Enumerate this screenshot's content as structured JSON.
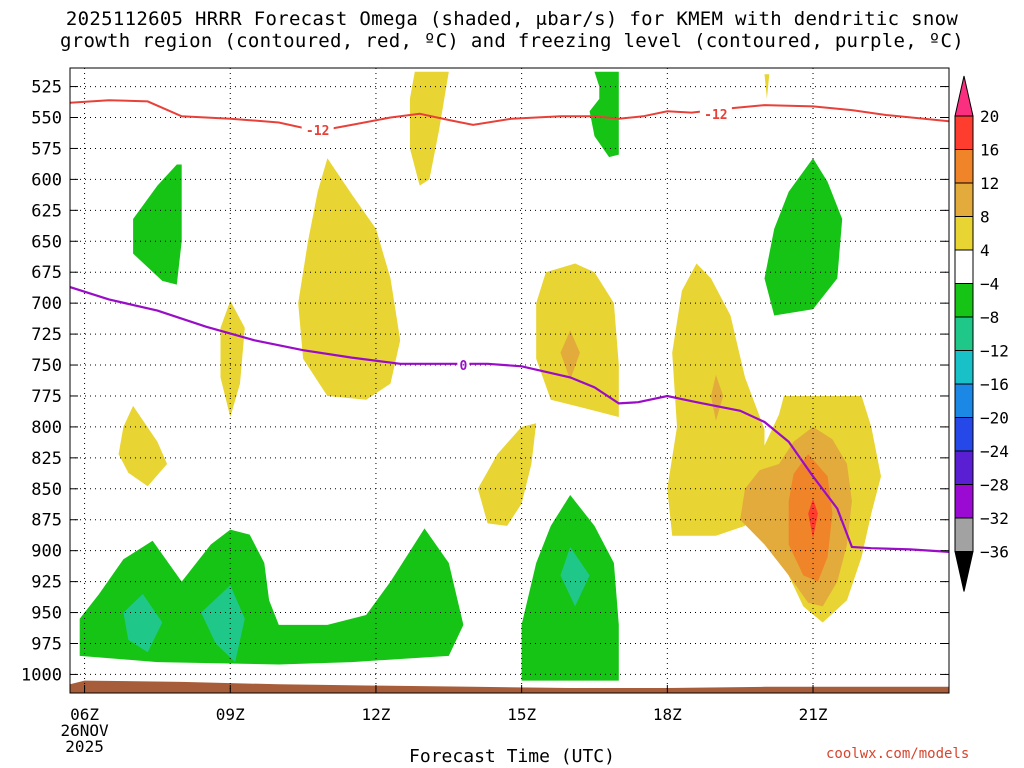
{
  "title": {
    "line1": "2025112605 HRRR Forecast Omega (shaded, μbar/s) for KMEM with dendritic snow",
    "line2": "growth region (contoured, red, ºC) and freezing level (contoured, purple, ºC)"
  },
  "credit": "coolwx.com/models",
  "chart_data": {
    "type": "time-height cross-section (filled contour)",
    "xlabel": "Forecast Time (UTC)",
    "x_ticks": [
      "06Z",
      "09Z",
      "12Z",
      "15Z",
      "18Z",
      "21Z"
    ],
    "x_date_label": [
      "26NOV",
      "2025"
    ],
    "xlim_hours_utc": [
      5.7,
      23.8
    ],
    "y_ticks_hpa": [
      525,
      550,
      575,
      600,
      625,
      650,
      675,
      700,
      725,
      750,
      775,
      800,
      825,
      850,
      875,
      900,
      925,
      950,
      975,
      1000
    ],
    "ylim_hpa": [
      510,
      1015
    ],
    "colorbar": {
      "labels": [
        "20",
        "16",
        "12",
        "8",
        "4",
        "−4",
        "−8",
        "−12",
        "−16",
        "−20",
        "−24",
        "−28",
        "−32",
        "−36"
      ],
      "colors": [
        "#fa2f80",
        "#ff3d2e",
        "#f08428",
        "#e3aa3c",
        "#e8d432",
        "#ffffff",
        "#16c416",
        "#1fc889",
        "#18c0c8",
        "#1c88e6",
        "#2648e8",
        "#5a1fd2",
        "#9b0ad2",
        "#a2a2a2",
        "#000000"
      ]
    },
    "dgz_contour": {
      "label": "-12",
      "color": "#e8413a",
      "points": [
        [
          5.7,
          538
        ],
        [
          6.5,
          536
        ],
        [
          7.3,
          537
        ],
        [
          8.0,
          549
        ],
        [
          9.0,
          551
        ],
        [
          10.0,
          554
        ],
        [
          10.8,
          561
        ],
        [
          11.5,
          556
        ],
        [
          12.3,
          550
        ],
        [
          12.9,
          547
        ],
        [
          13.5,
          552
        ],
        [
          14.0,
          556
        ],
        [
          14.8,
          551
        ],
        [
          15.8,
          549
        ],
        [
          16.5,
          549
        ],
        [
          17.0,
          551
        ],
        [
          17.5,
          549
        ],
        [
          18.0,
          545
        ],
        [
          18.5,
          546
        ],
        [
          19.2,
          543
        ],
        [
          20.0,
          540
        ],
        [
          21.0,
          541
        ],
        [
          21.8,
          544
        ],
        [
          22.5,
          548
        ],
        [
          23.8,
          553
        ]
      ],
      "label_positions": [
        [
          10.8,
          561
        ],
        [
          19.0,
          548
        ]
      ]
    },
    "freezing_level_contour": {
      "label": "0",
      "color": "#9a0dc8",
      "points": [
        [
          5.7,
          687
        ],
        [
          6.5,
          697
        ],
        [
          7.5,
          706
        ],
        [
          8.5,
          719
        ],
        [
          9.5,
          730
        ],
        [
          10.5,
          738
        ],
        [
          11.5,
          744
        ],
        [
          12.5,
          749
        ],
        [
          13.5,
          749
        ],
        [
          14.3,
          749
        ],
        [
          15.0,
          751
        ],
        [
          16.0,
          760
        ],
        [
          16.5,
          768
        ],
        [
          17.0,
          781
        ],
        [
          17.4,
          780
        ],
        [
          18.0,
          775
        ],
        [
          18.6,
          780
        ],
        [
          19.5,
          787
        ],
        [
          20.0,
          796
        ],
        [
          20.5,
          812
        ],
        [
          21.0,
          840
        ],
        [
          21.5,
          866
        ],
        [
          21.8,
          897
        ],
        [
          22.2,
          898
        ],
        [
          23.0,
          899
        ],
        [
          23.8,
          901
        ]
      ],
      "label_position": [
        13.8,
        750
      ]
    },
    "omega_regions": [
      {
        "value_class": "4 to 8",
        "color": "#e8d432",
        "polygon": [
          [
            12.8,
            513
          ],
          [
            13.5,
            513
          ],
          [
            13.3,
            560
          ],
          [
            13.1,
            600
          ],
          [
            12.9,
            605
          ],
          [
            12.7,
            575
          ],
          [
            12.7,
            535
          ]
        ]
      },
      {
        "value_class": "4 to 8",
        "color": "#e8d432",
        "polygon": [
          [
            11.0,
            583
          ],
          [
            11.5,
            612
          ],
          [
            12.0,
            640
          ],
          [
            12.3,
            680
          ],
          [
            12.5,
            730
          ],
          [
            12.3,
            765
          ],
          [
            11.8,
            778
          ],
          [
            11.0,
            775
          ],
          [
            10.5,
            745
          ],
          [
            10.4,
            700
          ],
          [
            10.6,
            650
          ],
          [
            10.8,
            610
          ]
        ]
      },
      {
        "value_class": "4 to 8",
        "color": "#e8d432",
        "polygon": [
          [
            9.0,
            698
          ],
          [
            9.3,
            720
          ],
          [
            9.2,
            765
          ],
          [
            9.0,
            792
          ],
          [
            8.8,
            760
          ],
          [
            8.8,
            720
          ]
        ]
      },
      {
        "value_class": "4 to 8",
        "color": "#e8d432",
        "polygon": [
          [
            7.0,
            783
          ],
          [
            7.5,
            812
          ],
          [
            7.7,
            830
          ],
          [
            7.3,
            848
          ],
          [
            6.9,
            837
          ],
          [
            6.7,
            822
          ],
          [
            6.8,
            800
          ]
        ]
      },
      {
        "value_class": "4 to 8",
        "color": "#e8d432",
        "polygon": [
          [
            15.3,
            797
          ],
          [
            15.2,
            830
          ],
          [
            15.0,
            862
          ],
          [
            14.7,
            880
          ],
          [
            14.3,
            878
          ],
          [
            14.1,
            850
          ],
          [
            14.5,
            822
          ],
          [
            15.0,
            800
          ]
        ]
      },
      {
        "value_class": "4 to 8",
        "color": "#e8d432",
        "polygon": [
          [
            16.1,
            668
          ],
          [
            16.5,
            675
          ],
          [
            16.9,
            700
          ],
          [
            17.0,
            750
          ],
          [
            17.0,
            792
          ],
          [
            16.3,
            785
          ],
          [
            15.6,
            778
          ],
          [
            15.3,
            745
          ],
          [
            15.3,
            700
          ],
          [
            15.5,
            675
          ]
        ]
      },
      {
        "value_class": "4 to 8",
        "color": "#e8d432",
        "polygon": [
          [
            18.6,
            668
          ],
          [
            18.9,
            680
          ],
          [
            19.3,
            710
          ],
          [
            19.6,
            760
          ],
          [
            20.0,
            802
          ],
          [
            20.0,
            840
          ],
          [
            19.6,
            880
          ],
          [
            19.0,
            888
          ],
          [
            18.1,
            888
          ],
          [
            18.0,
            850
          ],
          [
            18.2,
            800
          ],
          [
            18.1,
            740
          ],
          [
            18.3,
            690
          ]
        ]
      },
      {
        "value_class": "4 to 8",
        "color": "#e8d432",
        "polygon": [
          [
            20.4,
            775
          ],
          [
            21.2,
            775
          ],
          [
            22.0,
            775
          ],
          [
            22.2,
            800
          ],
          [
            22.4,
            840
          ],
          [
            22.2,
            870
          ],
          [
            22.0,
            905
          ],
          [
            21.7,
            940
          ],
          [
            21.2,
            958
          ],
          [
            20.8,
            945
          ],
          [
            20.4,
            912
          ],
          [
            20.0,
            880
          ],
          [
            19.8,
            850
          ],
          [
            20.0,
            815
          ],
          [
            20.3,
            790
          ]
        ]
      },
      {
        "value_class": "4 to 8",
        "color": "#e8d432",
        "polygon": [
          [
            20.0,
            515
          ],
          [
            20.1,
            515
          ],
          [
            20.05,
            535
          ]
        ]
      },
      {
        "value_class": "8 to 12",
        "color": "#e3aa3c",
        "polygon": [
          [
            21.0,
            800
          ],
          [
            21.4,
            810
          ],
          [
            21.7,
            830
          ],
          [
            21.8,
            860
          ],
          [
            21.7,
            895
          ],
          [
            21.5,
            925
          ],
          [
            21.2,
            945
          ],
          [
            20.9,
            942
          ],
          [
            20.5,
            920
          ],
          [
            20.0,
            895
          ],
          [
            19.5,
            875
          ],
          [
            19.6,
            850
          ],
          [
            19.9,
            835
          ],
          [
            20.3,
            830
          ],
          [
            20.6,
            812
          ]
        ]
      },
      {
        "value_class": "8 to 12",
        "color": "#e3aa3c",
        "polygon": [
          [
            16.0,
            722
          ],
          [
            16.2,
            740
          ],
          [
            16.0,
            762
          ],
          [
            15.8,
            740
          ]
        ]
      },
      {
        "value_class": "8 to 12",
        "color": "#e3aa3c",
        "polygon": [
          [
            19.0,
            758
          ],
          [
            19.15,
            775
          ],
          [
            19.0,
            795
          ],
          [
            18.9,
            775
          ]
        ]
      },
      {
        "value_class": "12 to 16",
        "color": "#f08428",
        "polygon": [
          [
            20.9,
            822
          ],
          [
            21.3,
            840
          ],
          [
            21.4,
            870
          ],
          [
            21.3,
            905
          ],
          [
            21.1,
            925
          ],
          [
            20.8,
            920
          ],
          [
            20.5,
            895
          ],
          [
            20.5,
            860
          ],
          [
            20.6,
            838
          ]
        ]
      },
      {
        "value_class": "16 to 20",
        "color": "#ff3d2e",
        "polygon": [
          [
            21.0,
            858
          ],
          [
            21.1,
            870
          ],
          [
            21.0,
            890
          ],
          [
            20.9,
            870
          ]
        ]
      },
      {
        "value_class": "-8 to -4",
        "color": "#16c416",
        "polygon": [
          [
            16.5,
            513
          ],
          [
            17.0,
            513
          ],
          [
            17.0,
            550
          ],
          [
            17.0,
            580
          ],
          [
            16.8,
            582
          ],
          [
            16.5,
            565
          ],
          [
            16.4,
            545
          ],
          [
            16.6,
            535
          ],
          [
            16.6,
            525
          ]
        ]
      },
      {
        "value_class": "-8 to -4",
        "color": "#16c416",
        "polygon": [
          [
            8.0,
            588
          ],
          [
            8.0,
            650
          ],
          [
            7.9,
            685
          ],
          [
            7.6,
            682
          ],
          [
            7.0,
            660
          ],
          [
            7.0,
            632
          ],
          [
            7.5,
            605
          ],
          [
            7.9,
            588
          ]
        ]
      },
      {
        "value_class": "-8 to -4",
        "color": "#16c416",
        "polygon": [
          [
            21.0,
            583
          ],
          [
            21.3,
            602
          ],
          [
            21.6,
            632
          ],
          [
            21.5,
            680
          ],
          [
            21.0,
            705
          ],
          [
            20.2,
            710
          ],
          [
            20.0,
            680
          ],
          [
            20.2,
            640
          ],
          [
            20.5,
            610
          ]
        ]
      },
      {
        "value_class": "-8 to -4",
        "color": "#16c416",
        "polygon": [
          [
            5.9,
            955
          ],
          [
            6.3,
            935
          ],
          [
            6.8,
            907
          ],
          [
            7.4,
            892
          ],
          [
            8.0,
            925
          ],
          [
            8.6,
            895
          ],
          [
            9.0,
            883
          ],
          [
            9.4,
            887
          ],
          [
            9.7,
            910
          ],
          [
            9.8,
            940
          ],
          [
            10.0,
            960
          ],
          [
            11.0,
            960
          ],
          [
            11.8,
            952
          ],
          [
            12.3,
            925
          ],
          [
            13.0,
            882
          ],
          [
            13.5,
            910
          ],
          [
            13.8,
            960
          ],
          [
            13.5,
            985
          ],
          [
            11.5,
            990
          ],
          [
            10.0,
            992
          ],
          [
            7.5,
            990
          ],
          [
            5.9,
            985
          ]
        ]
      },
      {
        "value_class": "-8 to -4",
        "color": "#16c416",
        "polygon": [
          [
            16.0,
            855
          ],
          [
            16.5,
            880
          ],
          [
            16.9,
            910
          ],
          [
            17.0,
            960
          ],
          [
            17.0,
            1005
          ],
          [
            15.0,
            1005
          ],
          [
            15.0,
            960
          ],
          [
            15.3,
            910
          ],
          [
            15.6,
            880
          ]
        ]
      },
      {
        "value_class": "-12 to -8",
        "color": "#1fc889",
        "polygon": [
          [
            7.2,
            935
          ],
          [
            7.6,
            958
          ],
          [
            7.3,
            982
          ],
          [
            6.9,
            972
          ],
          [
            6.8,
            950
          ]
        ]
      },
      {
        "value_class": "-12 to -8",
        "color": "#1fc889",
        "polygon": [
          [
            9.0,
            928
          ],
          [
            9.3,
            955
          ],
          [
            9.1,
            990
          ],
          [
            8.7,
            975
          ],
          [
            8.4,
            950
          ]
        ]
      },
      {
        "value_class": "-12 to -8",
        "color": "#1fc889",
        "polygon": [
          [
            16.0,
            897
          ],
          [
            16.4,
            920
          ],
          [
            16.1,
            945
          ],
          [
            15.8,
            920
          ]
        ]
      }
    ],
    "ground": {
      "color": "#a75d3a"
    }
  }
}
